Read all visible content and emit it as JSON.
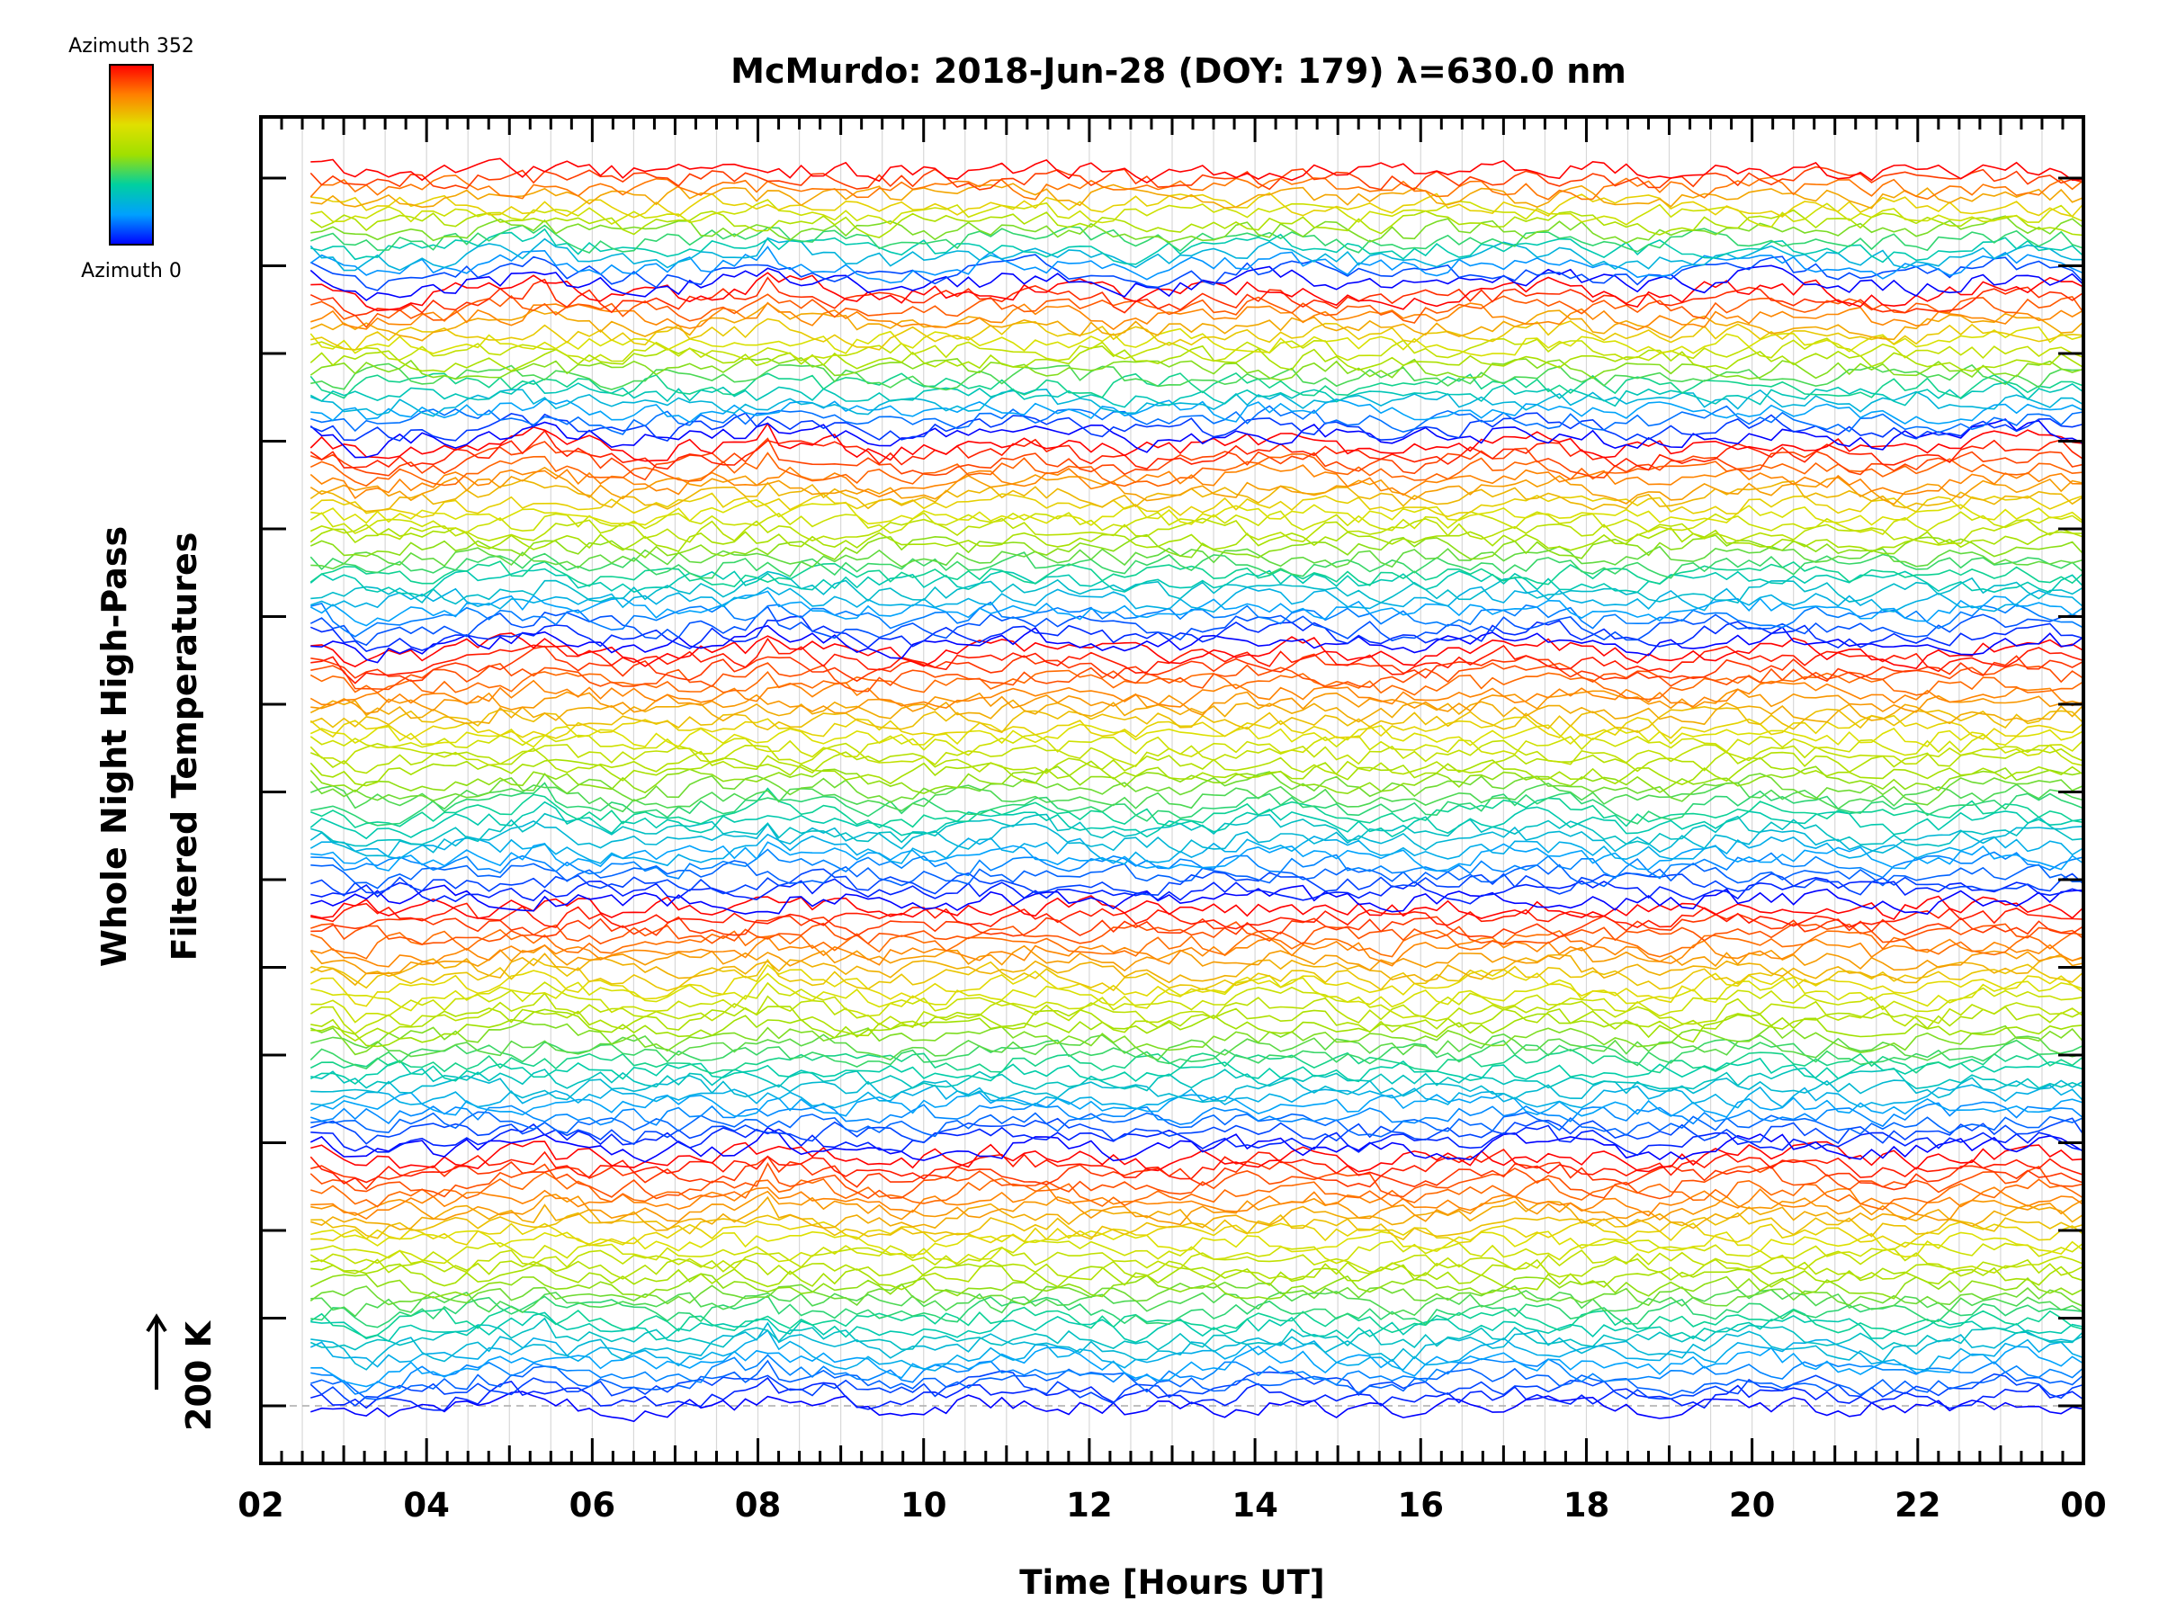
{
  "chart_data": {
    "type": "line",
    "title": "McMurdo: 2018-Jun-28 (DOY: 179) λ=630.0 nm",
    "xlabel": "Time [Hours UT]",
    "ylabel_line1": "Whole Night High-Pass",
    "ylabel_line2": "Filtered Temperatures",
    "scale_label": "200 K",
    "x_range": [
      2,
      24
    ],
    "x_tick_labels": [
      "02",
      "04",
      "06",
      "08",
      "10",
      "12",
      "14",
      "16",
      "18",
      "20",
      "22",
      "00"
    ],
    "x_start": 2.6,
    "x_end": 24.0,
    "num_series": 145,
    "offset_per_series_K": 6.9,
    "colorbar": {
      "top_label": "Azimuth 352",
      "bottom_label": "Azimuth 0",
      "azimuth_min": 0,
      "azimuth_max": 352,
      "colors": [
        "#0000ff",
        "#00a0ff",
        "#00d0a0",
        "#a0e000",
        "#e0e000",
        "#ff8000",
        "#ff0000"
      ]
    },
    "azimuth_cycle_lengths": [
      30,
      29,
      30,
      24,
      18,
      14
    ],
    "grid": true,
    "baseline_dashed": true
  }
}
